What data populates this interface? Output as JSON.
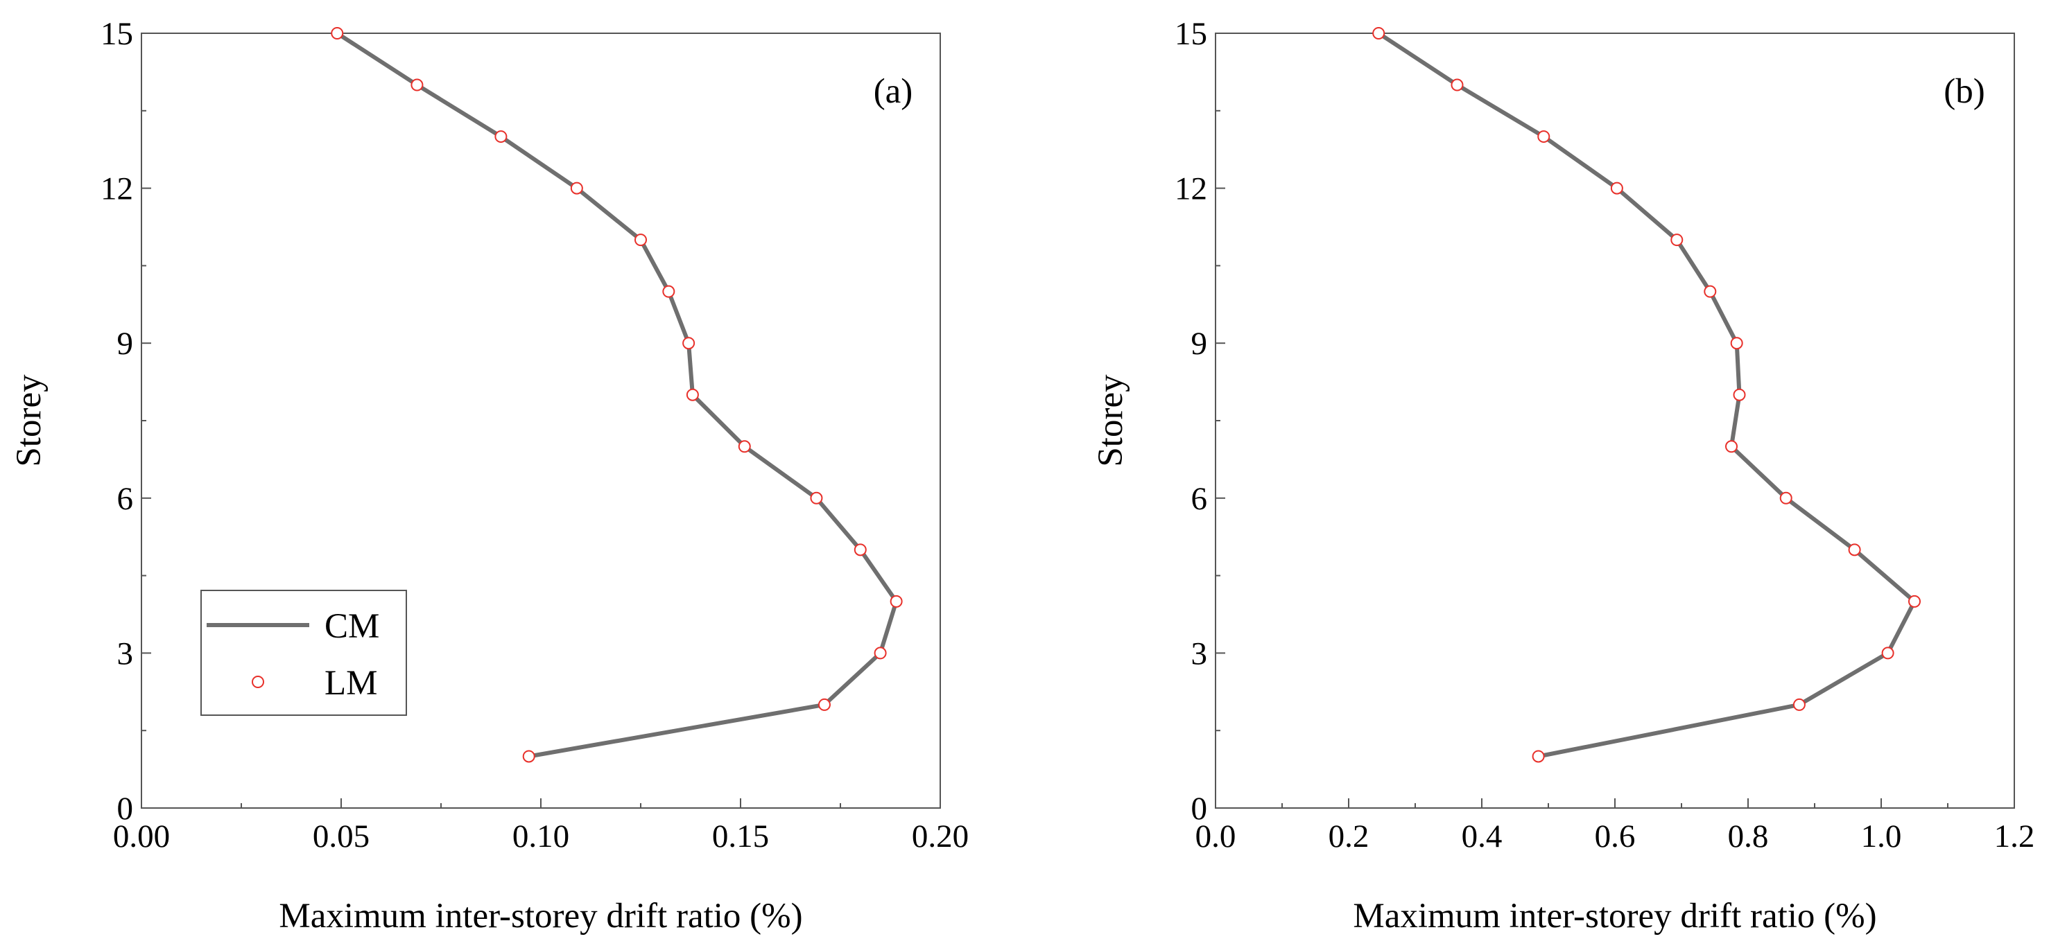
{
  "colors": {
    "cm_line": "#6f6f6f",
    "lm_marker": "#e8302a",
    "frame": "#555555"
  },
  "legend": {
    "items": [
      {
        "label": "CM",
        "kind": "line"
      },
      {
        "label": "LM",
        "kind": "marker"
      }
    ]
  },
  "chart_data": [
    {
      "type": "line",
      "panel_label": "(a)",
      "xlabel": "Maximum inter-storey drift ratio (%)",
      "ylabel": "Storey",
      "xlim": [
        0.0,
        0.2
      ],
      "ylim": [
        0,
        15
      ],
      "xticks": [
        0.0,
        0.05,
        0.1,
        0.15,
        0.2
      ],
      "xtick_labels": [
        "0.00",
        "0.05",
        "0.10",
        "0.15",
        "0.20"
      ],
      "yticks": [
        0,
        3,
        6,
        9,
        12,
        15
      ],
      "ytick_labels": [
        "0",
        "3",
        "6",
        "9",
        "12",
        "15"
      ],
      "grid": false,
      "legend_position": "bottom-left",
      "storeys": [
        1,
        2,
        3,
        4,
        5,
        6,
        7,
        8,
        9,
        10,
        11,
        12,
        13,
        14,
        15
      ],
      "series": [
        {
          "name": "CM",
          "values": [
            0.097,
            0.171,
            0.185,
            0.189,
            0.18,
            0.169,
            0.151,
            0.138,
            0.137,
            0.132,
            0.125,
            0.109,
            0.09,
            0.069,
            0.049
          ]
        },
        {
          "name": "LM",
          "values": [
            0.097,
            0.171,
            0.185,
            0.189,
            0.18,
            0.169,
            0.151,
            0.138,
            0.137,
            0.132,
            0.125,
            0.109,
            0.09,
            0.069,
            0.049
          ]
        }
      ]
    },
    {
      "type": "line",
      "panel_label": "(b)",
      "xlabel": "Maximum inter-storey drift ratio (%)",
      "ylabel": "Storey",
      "xlim": [
        0.0,
        1.2
      ],
      "ylim": [
        0,
        15
      ],
      "xticks": [
        0.0,
        0.2,
        0.4,
        0.6,
        0.8,
        1.0,
        1.2
      ],
      "xtick_labels": [
        "0.0",
        "0.2",
        "0.4",
        "0.6",
        "0.8",
        "1.0",
        "1.2"
      ],
      "yticks": [
        0,
        3,
        6,
        9,
        12,
        15
      ],
      "ytick_labels": [
        "0",
        "3",
        "6",
        "9",
        "12",
        "15"
      ],
      "grid": false,
      "legend_position": "none",
      "storeys": [
        1,
        2,
        3,
        4,
        5,
        6,
        7,
        8,
        9,
        10,
        11,
        12,
        13,
        14,
        15
      ],
      "series": [
        {
          "name": "CM",
          "values": [
            0.485,
            0.877,
            1.01,
            1.05,
            0.96,
            0.857,
            0.775,
            0.787,
            0.783,
            0.743,
            0.693,
            0.603,
            0.493,
            0.363,
            0.245
          ]
        },
        {
          "name": "LM",
          "values": [
            0.485,
            0.877,
            1.01,
            1.05,
            0.96,
            0.857,
            0.775,
            0.787,
            0.783,
            0.743,
            0.693,
            0.603,
            0.493,
            0.363,
            0.245
          ]
        }
      ]
    }
  ]
}
